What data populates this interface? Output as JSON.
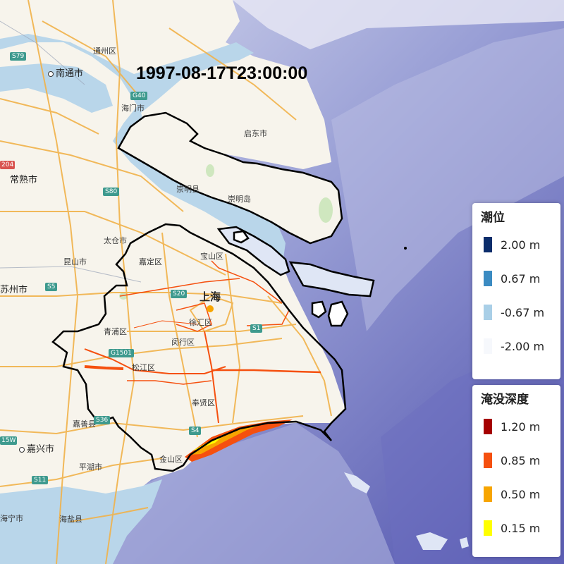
{
  "timestamp": "1997-08-17T23:00:00",
  "legend_tide": {
    "title": "潮位",
    "items": [
      {
        "label": "2.00 m",
        "color": "#0b2d6b"
      },
      {
        "label": "0.67 m",
        "color": "#3b8bc2"
      },
      {
        "label": "-0.67 m",
        "color": "#a9cfe7"
      },
      {
        "label": "-2.00 m",
        "color": "#f6f8fc"
      }
    ]
  },
  "legend_depth": {
    "title": "淹没深度",
    "items": [
      {
        "label": "1.20 m",
        "color": "#a50000"
      },
      {
        "label": "0.85 m",
        "color": "#f5500f"
      },
      {
        "label": "0.50 m",
        "color": "#f7a500"
      },
      {
        "label": "0.15 m",
        "color": "#ffff00"
      }
    ]
  },
  "places": {
    "tongzhou": "通州区",
    "nantong": "南通市",
    "haimen": "海门市",
    "qidong": "启东市",
    "chongming_county": "崇明县",
    "chongming_island": "崇明岛",
    "changshu": "常熟市",
    "taicang": "太仓市",
    "kunshan": "昆山市",
    "suzhou": "苏州市",
    "jiading": "嘉定区",
    "baoshan": "宝山区",
    "shanghai": "上海",
    "qingpu": "青浦区",
    "minhang": "闵行区",
    "xuhui": "徐汇区",
    "songjiang": "松江区",
    "fengxian": "奉贤区",
    "jiashan": "嘉善县",
    "jiaxing": "嘉兴市",
    "jinshan": "金山区",
    "pinghu": "平湖市",
    "haining": "海宁市",
    "haiyan": "海盐县"
  },
  "roads": {
    "s79": "S79",
    "g40": "G40",
    "s80": "S80",
    "s5": "S5",
    "s20": "S20",
    "s1": "S1",
    "g1501": "G1501",
    "s36": "S36",
    "s4": "S4",
    "s15w": "15W",
    "s11": "S11",
    "r04": "204"
  }
}
